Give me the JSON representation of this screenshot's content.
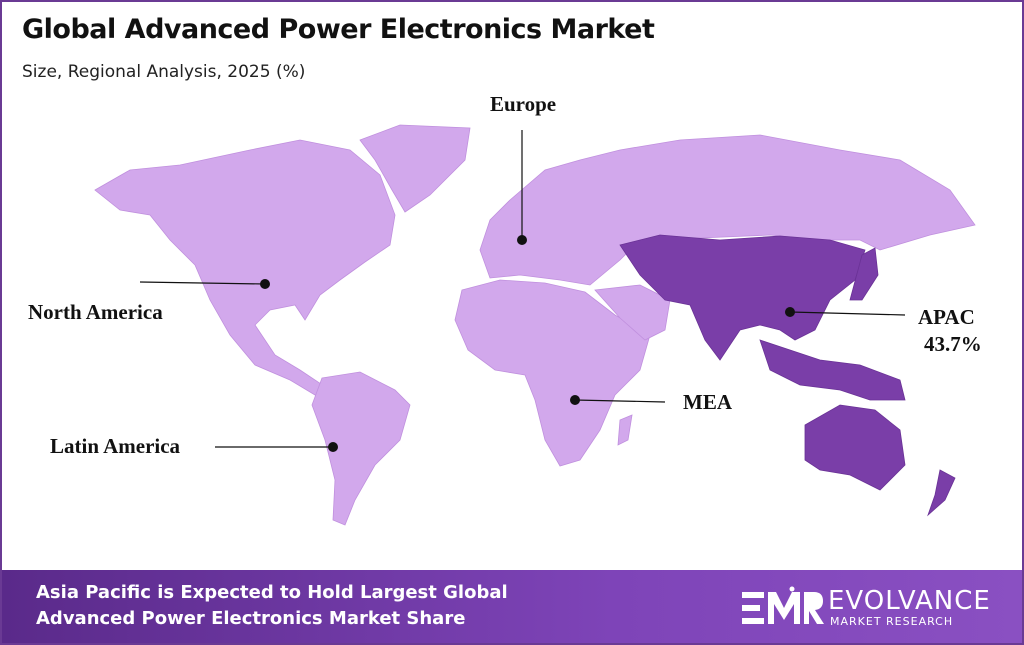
{
  "header": {
    "title": "Global Advanced Power Electronics Market",
    "subtitle": "Size, Regional Analysis, 2025 (%)"
  },
  "colors": {
    "land": "#d2a8ec",
    "apac": "#7a3ea8",
    "accent": "#6a3a94",
    "marker": "#111111"
  },
  "regions": [
    {
      "name": "Europe",
      "value": ""
    },
    {
      "name": "North America",
      "value": ""
    },
    {
      "name": "Latin America",
      "value": ""
    },
    {
      "name": "MEA",
      "value": ""
    },
    {
      "name": "APAC",
      "value": "43.7%",
      "highlighted": true
    }
  ],
  "banner": {
    "line1": "Asia Pacific is Expected to Hold Largest Global",
    "line2": "Advanced Power Electronics Market Share"
  },
  "logo": {
    "mark": "EMR",
    "name": "EVOLVANCE",
    "tagline": "MARKET RESEARCH"
  }
}
